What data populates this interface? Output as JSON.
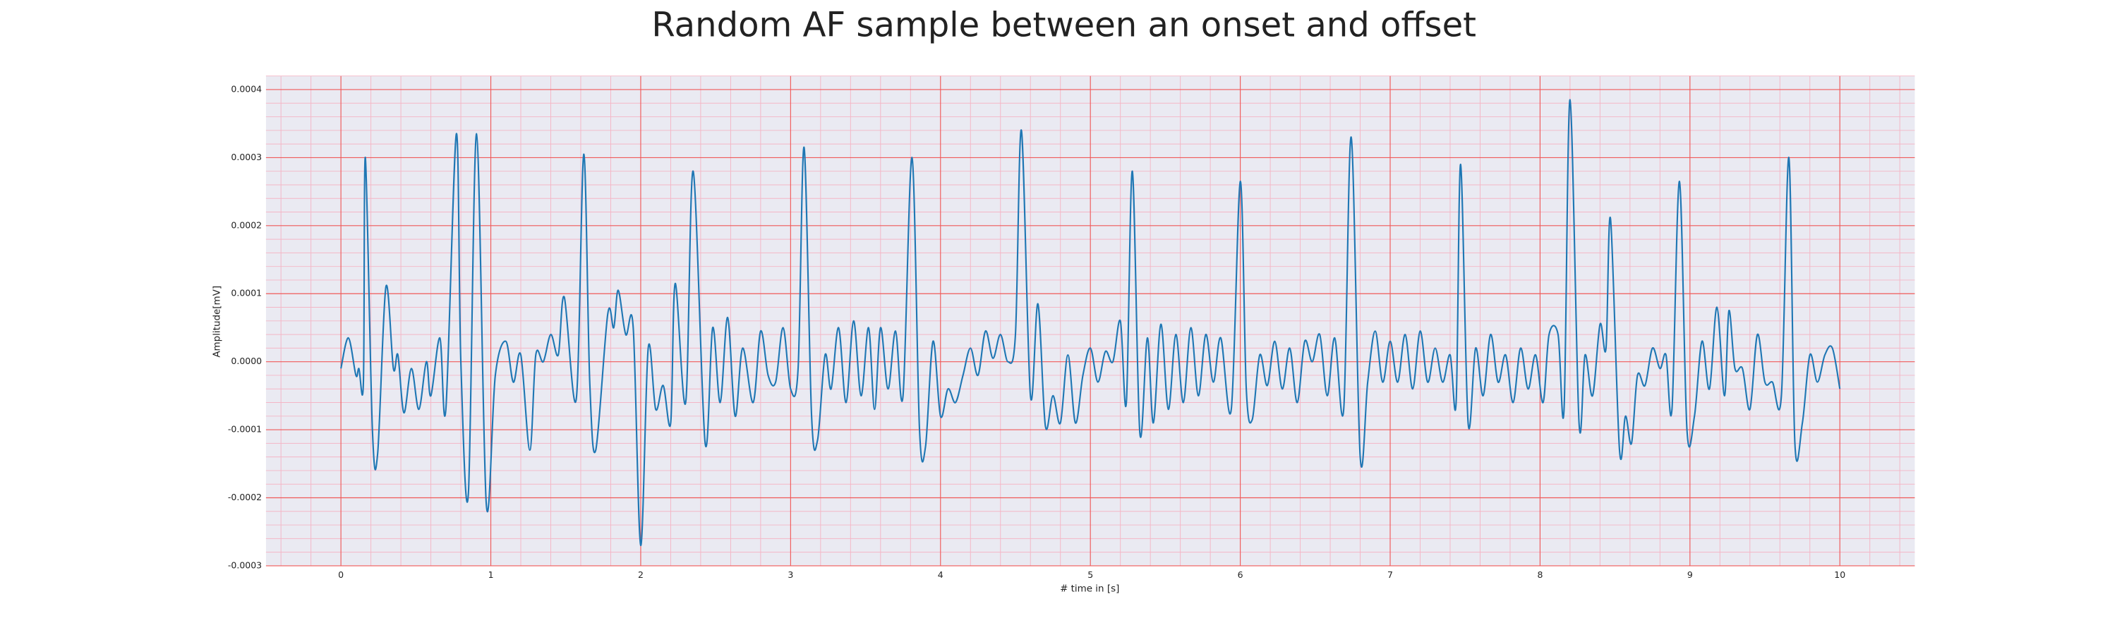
{
  "chart_data": {
    "type": "line",
    "title": "Random AF sample between an onset and offset",
    "x_label": "# time in [s]",
    "y_label": "Amplitude[mV]",
    "xlim": [
      -0.5,
      10.5
    ],
    "ylim": [
      -0.0003,
      0.00042
    ],
    "xticks": [
      0,
      1,
      2,
      3,
      4,
      5,
      6,
      7,
      8,
      9,
      10
    ],
    "yticks": [
      -0.0003,
      -0.0002,
      -0.0001,
      {
        "value": 0,
        "label": "0.0000"
      },
      0.0001,
      0.0002,
      0.0003,
      0.0004
    ],
    "grid": true,
    "minor_grid": true,
    "series": [
      {
        "color": "#1f77b4",
        "x": [
          0,
          0.05,
          0.1,
          0.12,
          0.15,
          0.163,
          0.21,
          0.245,
          0.3,
          0.35,
          0.38,
          0.42,
          0.47,
          0.52,
          0.57,
          0.6,
          0.66,
          0.7,
          0.77,
          0.8,
          0.85,
          0.905,
          0.97,
          1.03,
          1.1,
          1.15,
          1.2,
          1.26,
          1.3,
          1.35,
          1.4,
          1.45,
          1.49,
          1.57,
          1.62,
          1.66,
          1.7,
          1.78,
          1.82,
          1.85,
          1.9,
          1.95,
          2.0,
          2.05,
          2.1,
          2.15,
          2.2,
          2.23,
          2.3,
          2.35,
          2.43,
          2.48,
          2.53,
          2.58,
          2.63,
          2.68,
          2.75,
          2.8,
          2.85,
          2.9,
          2.95,
          3.0,
          3.05,
          3.09,
          3.14,
          3.18,
          3.23,
          3.27,
          3.32,
          3.37,
          3.42,
          3.47,
          3.52,
          3.56,
          3.6,
          3.65,
          3.7,
          3.75,
          3.81,
          3.86,
          3.9,
          3.95,
          4.0,
          4.05,
          4.1,
          4.15,
          4.2,
          4.25,
          4.3,
          4.35,
          4.4,
          4.45,
          4.5,
          4.54,
          4.6,
          4.65,
          4.7,
          4.75,
          4.8,
          4.85,
          4.9,
          4.95,
          5.0,
          5.05,
          5.1,
          5.15,
          5.2,
          5.24,
          5.28,
          5.33,
          5.38,
          5.42,
          5.47,
          5.52,
          5.57,
          5.62,
          5.67,
          5.72,
          5.77,
          5.82,
          5.87,
          5.94,
          6.0,
          6.04,
          6.08,
          6.13,
          6.18,
          6.23,
          6.28,
          6.33,
          6.38,
          6.43,
          6.48,
          6.53,
          6.58,
          6.63,
          6.69,
          6.74,
          6.8,
          6.85,
          6.9,
          6.95,
          7.0,
          7.05,
          7.1,
          7.15,
          7.2,
          7.25,
          7.3,
          7.35,
          7.4,
          7.44,
          7.47,
          7.52,
          7.57,
          7.62,
          7.67,
          7.72,
          7.77,
          7.82,
          7.87,
          7.92,
          7.97,
          8.02,
          8.06,
          8.12,
          8.16,
          8.2,
          8.26,
          8.3,
          8.35,
          8.4,
          8.44,
          8.47,
          8.53,
          8.57,
          8.61,
          8.65,
          8.7,
          8.75,
          8.8,
          8.84,
          8.88,
          8.93,
          8.98,
          9.03,
          9.08,
          9.13,
          9.18,
          9.23,
          9.26,
          9.3,
          9.35,
          9.4,
          9.45,
          9.5,
          9.55,
          9.61,
          9.66,
          9.7,
          9.75,
          9.8,
          9.85,
          9.9,
          9.95,
          10.0
        ],
        "values": [
          -1e-05,
          3.5e-05,
          -2e-05,
          -1e-05,
          -3e-05,
          0.0003,
          -0.0001,
          -0.000135,
          0.00011,
          -1e-05,
          1e-05,
          -7.5e-05,
          -1e-05,
          -7e-05,
          0,
          -5e-05,
          3.5e-05,
          -7e-05,
          0.000335,
          0,
          -0.000195,
          0.000335,
          -0.00021,
          -2e-05,
          3e-05,
          -3e-05,
          1e-05,
          -0.00013,
          1e-05,
          0,
          4e-05,
          1e-05,
          9.5e-05,
          -5.5e-05,
          0.000305,
          -3e-05,
          -0.00013,
          7e-05,
          5e-05,
          0.000105,
          4e-05,
          5e-05,
          -0.00027,
          2e-05,
          -7e-05,
          -3.5e-05,
          -9e-05,
          0.000115,
          -6e-05,
          0.00028,
          -0.00012,
          5e-05,
          -6e-05,
          6.5e-05,
          -8e-05,
          2e-05,
          -6e-05,
          4.5e-05,
          -2e-05,
          -3e-05,
          5e-05,
          -4e-05,
          -1e-05,
          0.000315,
          -8e-05,
          -0.000115,
          1e-05,
          -4e-05,
          5e-05,
          -6e-05,
          6e-05,
          -5e-05,
          5e-05,
          -7e-05,
          5e-05,
          -4e-05,
          4.5e-05,
          -5e-05,
          0.0003,
          -0.0001,
          -0.000125,
          3e-05,
          -8e-05,
          -4e-05,
          -6e-05,
          -2e-05,
          2e-05,
          -2e-05,
          4.5e-05,
          5e-06,
          4e-05,
          0,
          4e-05,
          0.00034,
          -5e-05,
          8.5e-05,
          -9.5e-05,
          -5e-05,
          -9e-05,
          1e-05,
          -9e-05,
          -2e-05,
          2e-05,
          -3e-05,
          1.5e-05,
          0,
          6e-05,
          -6e-05,
          0.00028,
          -0.000105,
          3.5e-05,
          -9e-05,
          5.5e-05,
          -7e-05,
          4e-05,
          -6e-05,
          5e-05,
          -5e-05,
          4e-05,
          -3e-05,
          3.5e-05,
          -7e-05,
          0.000265,
          -4e-05,
          -8.5e-05,
          1e-05,
          -3.5e-05,
          3e-05,
          -4e-05,
          2e-05,
          -6e-05,
          3e-05,
          0,
          4e-05,
          -5e-05,
          3.5e-05,
          -7e-05,
          0.00033,
          -0.00014,
          -3e-05,
          4.5e-05,
          -3e-05,
          3e-05,
          -3e-05,
          4e-05,
          -4e-05,
          4.5e-05,
          -3e-05,
          2e-05,
          -3e-05,
          1e-05,
          -6e-05,
          0.00029,
          -9e-05,
          2e-05,
          -5e-05,
          4e-05,
          -3e-05,
          1e-05,
          -6e-05,
          2e-05,
          -4e-05,
          1e-05,
          -6e-05,
          4e-05,
          4e-05,
          -7e-05,
          0.000385,
          -9e-05,
          1e-05,
          -5e-05,
          5.5e-05,
          2e-05,
          0.00021,
          -0.00013,
          -8e-05,
          -0.00012,
          -2e-05,
          -3.5e-05,
          2e-05,
          -1e-05,
          1e-05,
          -7e-05,
          0.000265,
          -0.0001,
          -8e-05,
          3e-05,
          -4e-05,
          8e-05,
          -5e-05,
          7.5e-05,
          -1e-05,
          -1e-05,
          -7e-05,
          4e-05,
          -3e-05,
          -3e-05,
          -5e-05,
          0.0003,
          -0.00012,
          -9e-05,
          1e-05,
          -3e-05,
          1e-05,
          2e-05,
          -4e-05
        ]
      }
    ]
  }
}
